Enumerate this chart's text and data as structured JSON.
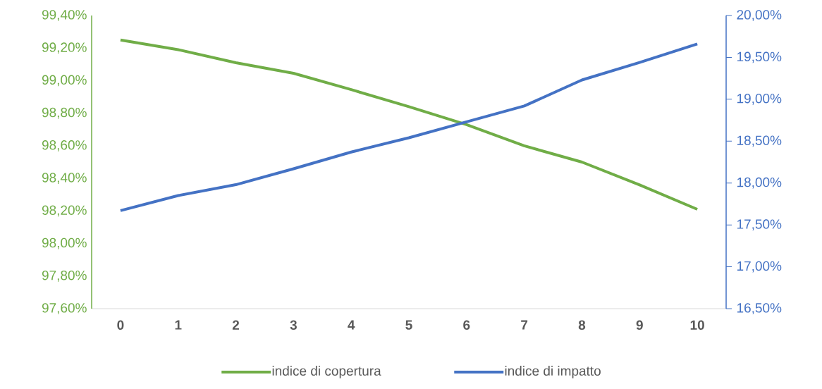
{
  "chart_data": {
    "type": "line",
    "categories": [
      "0",
      "1",
      "2",
      "3",
      "4",
      "5",
      "6",
      "7",
      "8",
      "9",
      "10"
    ],
    "series": [
      {
        "name": "indice di copertura",
        "color": "#70ad47",
        "axis": "y",
        "values": [
          99.25,
          99.19,
          99.11,
          99.045,
          98.945,
          98.84,
          98.73,
          98.6,
          98.5,
          98.36,
          98.21
        ]
      },
      {
        "name": "indice di impatto",
        "color": "#4472c4",
        "axis": "y2",
        "values": [
          17.67,
          17.85,
          17.98,
          18.17,
          18.37,
          18.54,
          18.73,
          18.92,
          19.23,
          19.44,
          19.66
        ]
      }
    ],
    "ylim": [
      97.6,
      99.4
    ],
    "yticks": [
      {
        "value": 97.6,
        "label": "97,60%"
      },
      {
        "value": 97.8,
        "label": "97,80%"
      },
      {
        "value": 98.0,
        "label": "98,00%"
      },
      {
        "value": 98.2,
        "label": "98,20%"
      },
      {
        "value": 98.4,
        "label": "98,40%"
      },
      {
        "value": 98.6,
        "label": "98,60%"
      },
      {
        "value": 98.8,
        "label": "98,80%"
      },
      {
        "value": 99.0,
        "label": "99,00%"
      },
      {
        "value": 99.2,
        "label": "99,20%"
      },
      {
        "value": 99.4,
        "label": "99,40%"
      }
    ],
    "y2lim": [
      16.5,
      20.0
    ],
    "y2ticks": [
      {
        "value": 16.5,
        "label": "16,50%"
      },
      {
        "value": 17.0,
        "label": "17,00%"
      },
      {
        "value": 17.5,
        "label": "17,50%"
      },
      {
        "value": 18.0,
        "label": "18,00%"
      },
      {
        "value": 18.5,
        "label": "18,50%"
      },
      {
        "value": 19.0,
        "label": "19,00%"
      },
      {
        "value": 19.5,
        "label": "19,50%"
      },
      {
        "value": 20.0,
        "label": "20,00%"
      }
    ],
    "legend": "bottom"
  }
}
